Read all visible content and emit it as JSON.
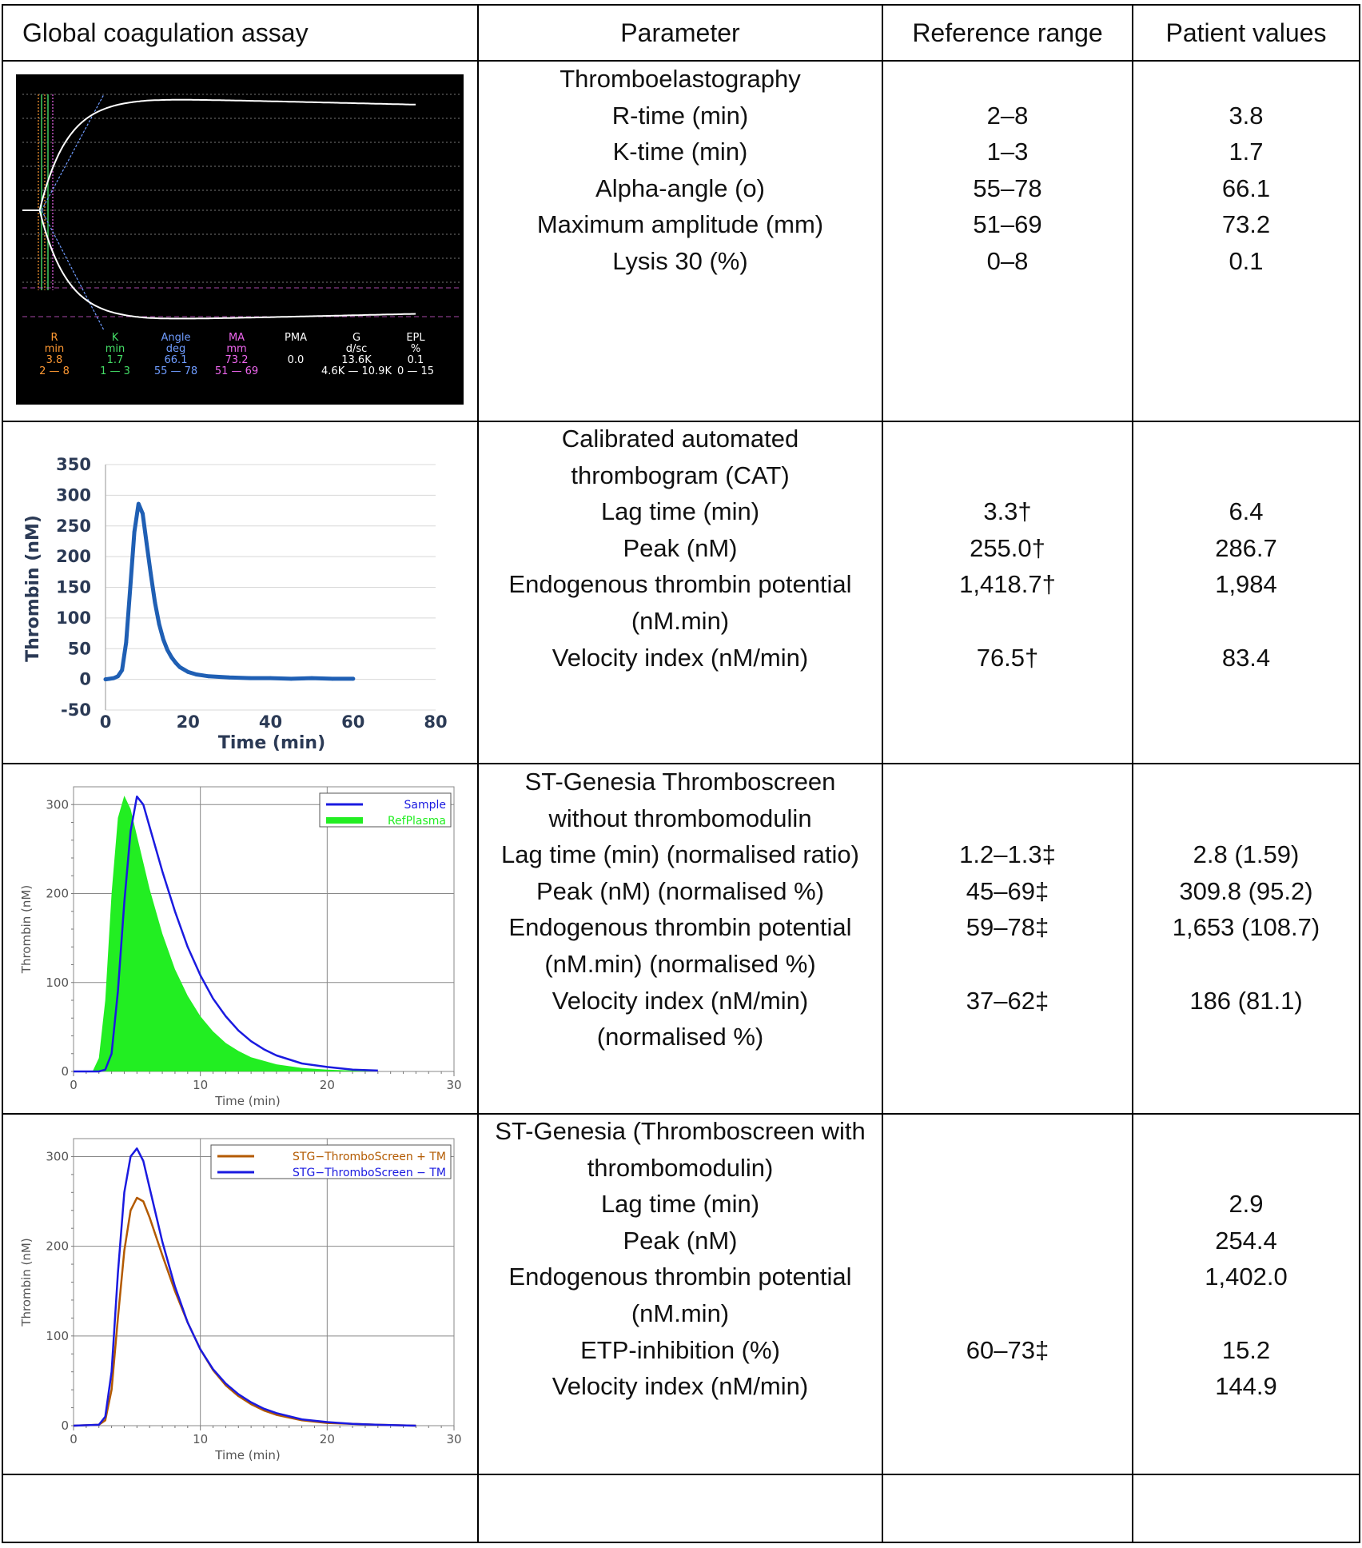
{
  "header": {
    "assay": "Global coagulation assay",
    "parameter": "Parameter",
    "reference": "Reference range",
    "patient": "Patient values"
  },
  "rows": [
    {
      "parameter_lines": [
        "Thromboelastography",
        "R-time (min)",
        "K-time (min)",
        "Alpha-angle (o)",
        "Maximum amplitude (mm)",
        "Lysis 30 (%)"
      ],
      "reference_lines": [
        "",
        "2–8",
        "1–3",
        "55–78",
        "51–69",
        "0–8"
      ],
      "patient_lines": [
        "",
        "3.8",
        "1.7",
        "66.1",
        "73.2",
        "0.1"
      ]
    },
    {
      "parameter_lines": [
        "Calibrated automated",
        "thrombogram (CAT)",
        "Lag time (min)",
        "Peak (nM)",
        "Endogenous thrombin potential",
        "(nM.min)",
        "Velocity index (nM/min)"
      ],
      "reference_lines": [
        "",
        "",
        "3.3†",
        "255.0†",
        "1,418.7†",
        "",
        "76.5†"
      ],
      "patient_lines": [
        "",
        "",
        "6.4",
        "286.7",
        "1,984",
        "",
        "83.4"
      ]
    },
    {
      "parameter_lines": [
        "ST-Genesia  Thromboscreen",
        "without thrombomodulin",
        "Lag time (min) (normalised ratio)",
        "Peak (nM) (normalised %)",
        "Endogenous thrombin potential",
        "(nM.min) (normalised %)",
        "Velocity index (nM/min)",
        "(normalised %)"
      ],
      "reference_lines": [
        "",
        "",
        "1.2–1.3‡",
        "45–69‡",
        "59–78‡",
        "",
        "37–62‡",
        ""
      ],
      "patient_lines": [
        "",
        "",
        "2.8 (1.59)",
        "309.8 (95.2)",
        "1,653 (108.7)",
        "",
        "186 (81.1)",
        ""
      ]
    },
    {
      "parameter_lines": [
        "ST-Genesia (Thromboscreen with",
        "thrombomodulin)",
        "Lag time (min)",
        "Peak (nM)",
        "Endogenous thrombin potential",
        "(nM.min)",
        "ETP-inhibition (%)",
        "Velocity index (nM/min)"
      ],
      "reference_lines": [
        "",
        "",
        "",
        "",
        "",
        "",
        "60–73‡",
        ""
      ],
      "patient_lines": [
        "",
        "",
        "2.9",
        "254.4",
        "1,402.0",
        "",
        "15.2",
        "144.9"
      ]
    }
  ],
  "teg": {
    "background": "#000000",
    "columns": [
      {
        "name": "R",
        "unit": "min",
        "value": "3.8",
        "range": "2 — 8",
        "color": "#ff9933"
      },
      {
        "name": "K",
        "unit": "min",
        "value": "1.7",
        "range": "1 — 3",
        "color": "#44dd66"
      },
      {
        "name": "Angle",
        "unit": "deg",
        "value": "66.1",
        "range": "55 — 78",
        "color": "#6f9cff"
      },
      {
        "name": "MA",
        "unit": "mm",
        "value": "73.2",
        "range": "51 — 69",
        "color": "#ee66ee"
      },
      {
        "name": "PMA",
        "unit": "",
        "value": "0.0",
        "range": "",
        "color": "#ffffff"
      },
      {
        "name": "G",
        "unit": "d/sc",
        "value": "13.6K",
        "range": "4.6K — 10.9K",
        "color": "#ffffff"
      },
      {
        "name": "EPL",
        "unit": "%",
        "value": "0.1",
        "range": "0 — 15",
        "color": "#ffffff"
      }
    ]
  },
  "chart_data": [
    {
      "type": "line",
      "title": "",
      "xlabel": "Time (min)",
      "ylabel": "Thrombin (nM)",
      "xlim": [
        0,
        80
      ],
      "ylim": [
        -50,
        350
      ],
      "xticks": [
        "0",
        "20",
        "40",
        "60",
        "80"
      ],
      "yticks": [
        "350",
        "300",
        "250",
        "200",
        "150",
        "100",
        "50",
        "0",
        "-50"
      ],
      "grid": true,
      "series": [
        {
          "color": "#1f5fb4",
          "x": [
            0,
            1,
            2,
            3,
            4,
            5,
            6,
            7,
            8,
            9,
            10,
            11,
            12,
            13,
            14,
            15,
            16,
            17,
            18,
            20,
            22,
            25,
            30,
            35,
            40,
            45,
            50,
            55,
            60
          ],
          "y": [
            0,
            1,
            2,
            5,
            15,
            60,
            150,
            240,
            286,
            270,
            220,
            170,
            125,
            90,
            65,
            48,
            36,
            27,
            20,
            12,
            8,
            5,
            3,
            2,
            2,
            1,
            2,
            1,
            1
          ]
        }
      ]
    },
    {
      "type": "area",
      "title": "",
      "xlabel": "Time (min)",
      "ylabel": "Thrombin (nM)",
      "xlim": [
        0,
        30
      ],
      "ylim": [
        0,
        320
      ],
      "xticks": [
        "0",
        "10",
        "20",
        "30"
      ],
      "yticks": [
        "100",
        "200",
        "300"
      ],
      "grid": true,
      "legend": "top-right",
      "series": [
        {
          "name": "Sample",
          "color": "#1a1ae0",
          "x": [
            0,
            2,
            2.5,
            3,
            3.5,
            4,
            4.5,
            5,
            5.5,
            6,
            7,
            8,
            9,
            10,
            11,
            12,
            13,
            14,
            15,
            16,
            18,
            20,
            22,
            24
          ],
          "y": [
            0,
            0,
            2,
            20,
            90,
            190,
            270,
            309,
            300,
            275,
            225,
            180,
            140,
            108,
            82,
            62,
            46,
            34,
            25,
            18,
            9,
            5,
            2,
            1
          ]
        },
        {
          "name": "RefPlasma",
          "color": "#22ee22",
          "x": [
            0,
            1.5,
            2,
            2.5,
            3,
            3.5,
            4,
            4.5,
            5,
            6,
            7,
            8,
            9,
            10,
            11,
            12,
            13,
            14,
            16,
            18,
            20,
            22,
            24
          ],
          "y": [
            0,
            0,
            15,
            80,
            200,
            285,
            310,
            295,
            265,
            205,
            155,
            115,
            85,
            62,
            45,
            32,
            23,
            16,
            8,
            4,
            2,
            1,
            0
          ]
        }
      ]
    },
    {
      "type": "line",
      "title": "",
      "xlabel": "Time (min)",
      "ylabel": "Thrombin (nM)",
      "xlim": [
        0,
        30
      ],
      "ylim": [
        0,
        320
      ],
      "xticks": [
        "0",
        "10",
        "20",
        "30"
      ],
      "yticks": [
        "100",
        "200",
        "300"
      ],
      "grid": true,
      "legend": "top-right",
      "series": [
        {
          "name": "STG−ThromboScreen + TM",
          "color": "#b35a00",
          "x": [
            0,
            2,
            2.5,
            3,
            3.5,
            4,
            4.5,
            5,
            5.5,
            6,
            7,
            8,
            9,
            10,
            11,
            12,
            13,
            14,
            15,
            16,
            18,
            20,
            22,
            24,
            27
          ],
          "y": [
            0,
            1,
            6,
            40,
            120,
            195,
            240,
            254,
            250,
            232,
            190,
            150,
            115,
            85,
            62,
            45,
            33,
            24,
            17,
            12,
            6,
            3,
            2,
            1,
            0
          ]
        },
        {
          "name": "STG−ThromboScreen − TM",
          "color": "#1a1ae0",
          "x": [
            0,
            2,
            2.5,
            3,
            3.5,
            4,
            4.5,
            5,
            5.5,
            6,
            7,
            8,
            9,
            10,
            11,
            12,
            13,
            14,
            15,
            16,
            18,
            20,
            22,
            24,
            27
          ],
          "y": [
            0,
            1,
            10,
            60,
            170,
            260,
            300,
            309,
            295,
            265,
            205,
            155,
            115,
            85,
            63,
            47,
            35,
            26,
            19,
            14,
            7,
            4,
            2,
            1,
            0
          ]
        }
      ]
    }
  ]
}
